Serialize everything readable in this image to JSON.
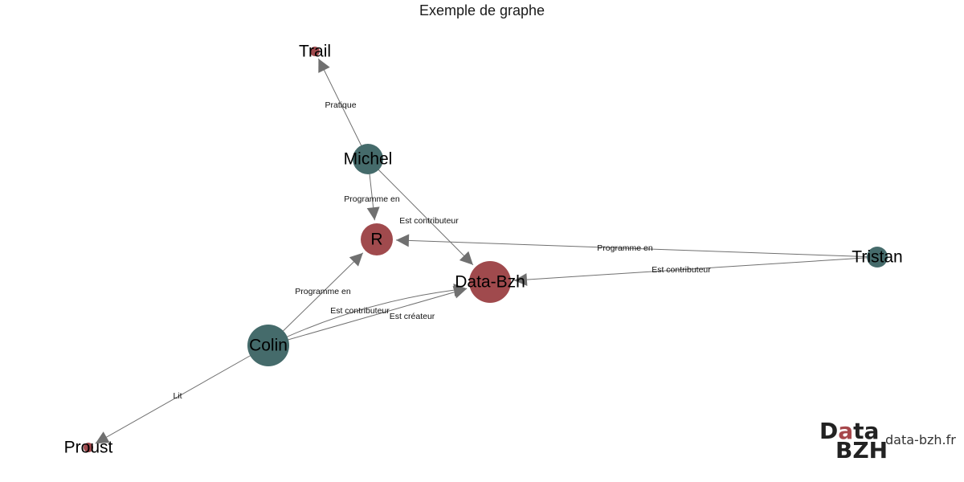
{
  "title": "Exemple de graphe",
  "colors": {
    "person": "#456b6b",
    "thing": "#a04a4d",
    "edge": "#707070",
    "logo_accent": "#a7474b"
  },
  "nodes": [
    {
      "id": "trail",
      "label": "Trail",
      "group": "thing",
      "weight": 1
    },
    {
      "id": "michel",
      "label": "Michel",
      "group": "person",
      "weight": 3
    },
    {
      "id": "r",
      "label": "R",
      "group": "thing",
      "weight": 3
    },
    {
      "id": "tristan",
      "label": "Tristan",
      "group": "person",
      "weight": 2
    },
    {
      "id": "databzh",
      "label": "Data-Bzh",
      "group": "thing",
      "weight": 6
    },
    {
      "id": "colin",
      "label": "Colin",
      "group": "person",
      "weight": 5
    },
    {
      "id": "proust",
      "label": "Proust",
      "group": "thing",
      "weight": 1
    }
  ],
  "edges": [
    {
      "from": "michel",
      "to": "trail",
      "label": "Pratique"
    },
    {
      "from": "michel",
      "to": "r",
      "label": "Programme en"
    },
    {
      "from": "michel",
      "to": "databzh",
      "label": "Est contributeur"
    },
    {
      "from": "tristan",
      "to": "r",
      "label": "Programme en"
    },
    {
      "from": "tristan",
      "to": "databzh",
      "label": "Est contributeur"
    },
    {
      "from": "colin",
      "to": "r",
      "label": "Programme en"
    },
    {
      "from": "colin",
      "to": "databzh",
      "label": "Est contributeur"
    },
    {
      "from": "colin",
      "to": "databzh",
      "label": "Est créateur"
    },
    {
      "from": "colin",
      "to": "proust",
      "label": "Lit"
    }
  ],
  "logo": {
    "word_top_a": "D",
    "word_top_accent": "a",
    "word_top_b": "ta",
    "word_bottom": "BZH",
    "url": "data-bzh.fr"
  }
}
